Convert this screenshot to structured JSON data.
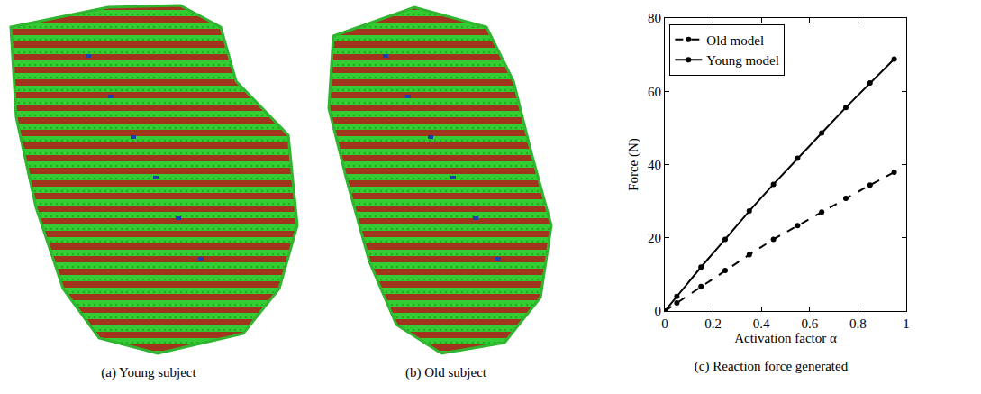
{
  "figures": [
    {
      "caption": "(a) Young subject"
    },
    {
      "caption": "(b) Old subject"
    }
  ],
  "chart_data": {
    "type": "line",
    "caption": "(c) Reaction force generated",
    "x_label": "Activation factor α",
    "y_label": "Force (N)",
    "x": [
      0,
      0.05,
      0.15,
      0.25,
      0.35,
      0.45,
      0.55,
      0.65,
      0.75,
      0.85,
      0.95
    ],
    "series": [
      {
        "name": "Old model",
        "color": "#000000",
        "line_style": "dash",
        "marker": "circle",
        "values": [
          0,
          2.2,
          6.7,
          11.1,
          15.4,
          19.6,
          23.3,
          27.0,
          30.8,
          34.4,
          37.9
        ]
      },
      {
        "name": "Young model",
        "color": "#000000",
        "line_style": "solid",
        "marker": "circle",
        "values": [
          0,
          4.0,
          12.0,
          19.6,
          27.3,
          34.6,
          41.7,
          48.6,
          55.6,
          62.3,
          68.8
        ]
      }
    ],
    "xlim": [
      0,
      1
    ],
    "xticks": [
      0,
      0.2,
      0.4,
      0.6,
      0.8,
      1
    ],
    "ylim": [
      0,
      80
    ],
    "yticks": [
      0,
      20,
      40,
      60,
      80
    ],
    "grid": false,
    "legend": "top left"
  }
}
